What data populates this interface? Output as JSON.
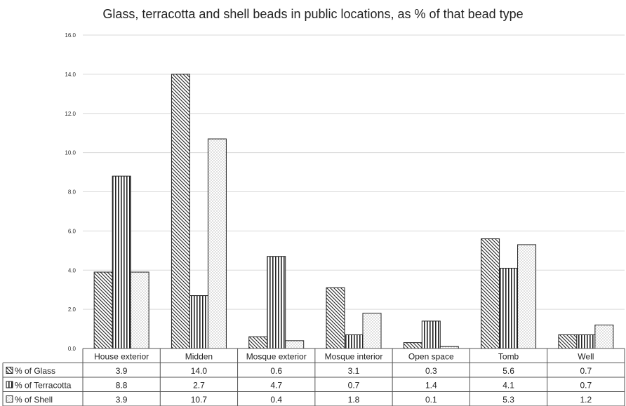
{
  "chart_data": {
    "type": "bar",
    "title": "Glass, terracotta and shell beads in public locations, as % of that bead type",
    "xlabel": "",
    "ylabel": "",
    "ylim": [
      0,
      16
    ],
    "ytick_step": 2,
    "ytick_labels": [
      "0.0",
      "2.0",
      "4.0",
      "6.0",
      "8.0",
      "10.0",
      "12.0",
      "14.0",
      "16.0"
    ],
    "gridlines": true,
    "legend": "data-table-below",
    "categories": [
      "House exterior",
      "Midden",
      "Mosque exterior",
      "Mosque interior",
      "Open space",
      "Tomb",
      "Well"
    ],
    "series": [
      {
        "name": "% of Glass",
        "pattern": "diagonal-hatch",
        "values": [
          3.9,
          14.0,
          0.6,
          3.1,
          0.3,
          5.6,
          0.7
        ],
        "labels": [
          "3.9",
          "14.0",
          "0.6",
          "3.1",
          "0.3",
          "5.6",
          "0.7"
        ]
      },
      {
        "name": "% of Terracotta",
        "pattern": "vertical-stripes",
        "values": [
          8.8,
          2.7,
          4.7,
          0.7,
          1.4,
          4.1,
          0.7
        ],
        "labels": [
          "8.8",
          "2.7",
          "4.7",
          "0.7",
          "1.4",
          "4.1",
          "0.7"
        ]
      },
      {
        "name": "% of Shell",
        "pattern": "dots",
        "values": [
          3.9,
          10.7,
          0.4,
          1.8,
          0.1,
          5.3,
          1.2
        ],
        "labels": [
          "3.9",
          "10.7",
          "0.4",
          "1.8",
          "0.1",
          "5.3",
          "1.2"
        ]
      }
    ],
    "colors": {
      "stroke": "#222222",
      "grid": "#d9d9d9",
      "fill": "#ffffff"
    }
  }
}
